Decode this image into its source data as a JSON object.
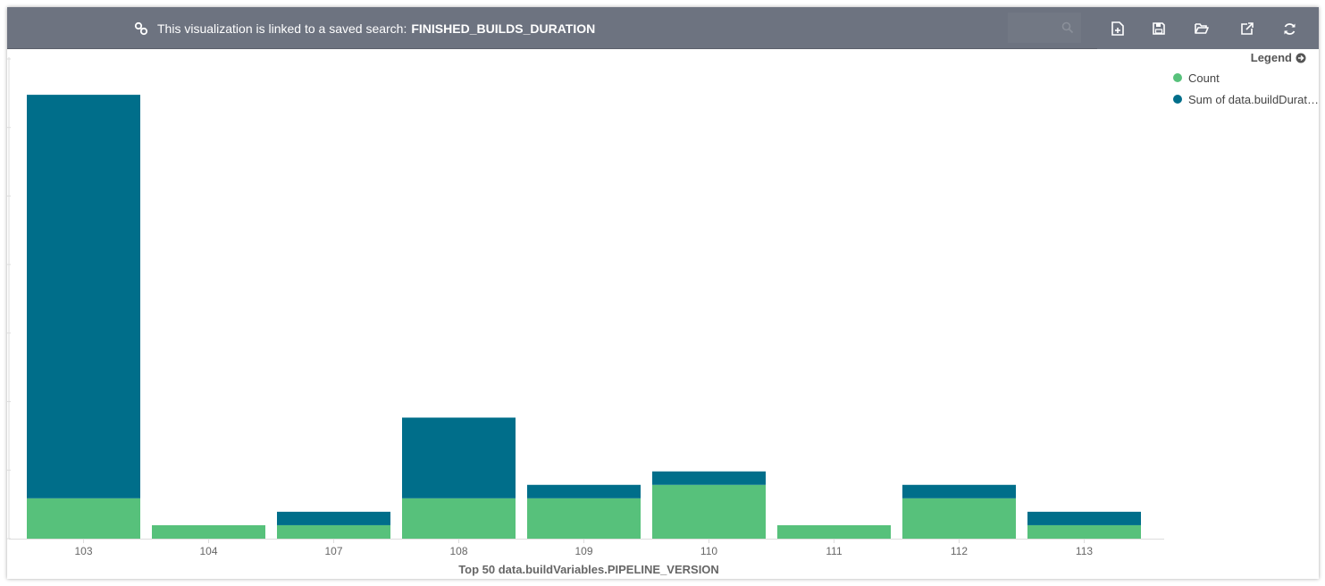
{
  "topbar": {
    "linked_text": "This visualization is linked to a saved search:",
    "saved_search": "FINISHED_BUILDS_DURATION",
    "icons": [
      "link-icon",
      "search-icon",
      "new-visualization-icon",
      "save-icon",
      "open-icon",
      "share-icon",
      "refresh-icon"
    ]
  },
  "legend": {
    "toggle_label": "Legend",
    "items": [
      {
        "label": "Count",
        "color": "#57c17b"
      },
      {
        "label": "Sum of data.buildDurat…",
        "color": "#006e8a"
      }
    ]
  },
  "chart_data": {
    "type": "bar",
    "stacked": true,
    "xlabel": "Top 50 data.buildVariables.PIPELINE_VERSION",
    "ylabel": "",
    "categories": [
      "103",
      "104",
      "107",
      "108",
      "109",
      "110",
      "111",
      "112",
      "113"
    ],
    "series": [
      {
        "name": "Count",
        "color": "#57c17b",
        "values": [
          3,
          1,
          1,
          3,
          3,
          4,
          1,
          3,
          1
        ]
      },
      {
        "name": "Sum of data.buildDurat…",
        "color": "#006e8a",
        "values": [
          30,
          0,
          1,
          6,
          1,
          1,
          0,
          1,
          1
        ]
      }
    ],
    "ylim": [
      0,
      35
    ],
    "grid": false,
    "legend_position": "right"
  }
}
